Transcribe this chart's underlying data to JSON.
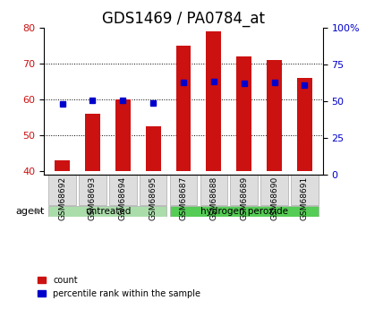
{
  "title": "GDS1469 / PA0784_at",
  "samples": [
    "GSM68692",
    "GSM68693",
    "GSM68694",
    "GSM68695",
    "GSM68687",
    "GSM68688",
    "GSM68689",
    "GSM68690",
    "GSM68691"
  ],
  "groups": [
    "untreated",
    "untreated",
    "untreated",
    "untreated",
    "hydrogen peroxide",
    "hydrogen peroxide",
    "hydrogen peroxide",
    "hydrogen peroxide",
    "hydrogen peroxide"
  ],
  "counts": [
    43.0,
    56.0,
    60.0,
    52.5,
    75.0,
    79.0,
    72.0,
    71.0,
    66.0
  ],
  "percentiles": [
    48.0,
    50.5,
    50.5,
    49.0,
    63.0,
    63.5,
    62.0,
    62.5,
    61.0
  ],
  "ylim_left": [
    39,
    80
  ],
  "ylim_right": [
    0,
    100
  ],
  "bar_color": "#cc1111",
  "percentile_color": "#0000cc",
  "bar_bottom": 40,
  "yticks_left": [
    40,
    50,
    60,
    70,
    80
  ],
  "yticks_right": [
    0,
    25,
    50,
    75,
    100
  ],
  "ytick_labels_right": [
    "0",
    "25",
    "50",
    "75",
    "100%"
  ],
  "group_colors": {
    "untreated": "#aaddaa",
    "hydrogen peroxide": "#55cc55"
  },
  "group_label": "agent",
  "legend_count": "count",
  "legend_percentile": "percentile rank within the sample",
  "title_fontsize": 12,
  "tick_fontsize": 8
}
